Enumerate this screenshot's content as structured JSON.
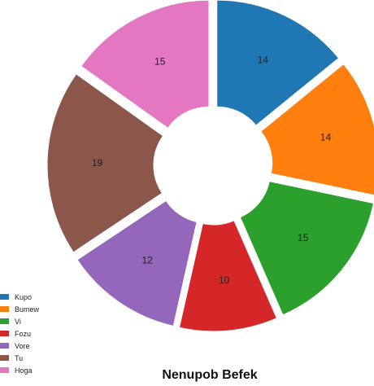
{
  "chart_data": {
    "type": "pie",
    "donut": true,
    "exploded": true,
    "title": "Nenupob Befek",
    "series": [
      {
        "name": "Kupo",
        "value": 14,
        "color": "#1f77b4"
      },
      {
        "name": "Bumew",
        "value": 14,
        "color": "#ff7f0e"
      },
      {
        "name": "Vi",
        "value": 15,
        "color": "#2ca02c"
      },
      {
        "name": "Fozu",
        "value": 10,
        "color": "#d62728"
      },
      {
        "name": "Vore",
        "value": 12,
        "color": "#9467bd"
      },
      {
        "name": "Tu",
        "value": 19,
        "color": "#8c564b"
      },
      {
        "name": "Hoga",
        "value": 15,
        "color": "#e377c2"
      }
    ],
    "legend_position": "bottom-left"
  }
}
